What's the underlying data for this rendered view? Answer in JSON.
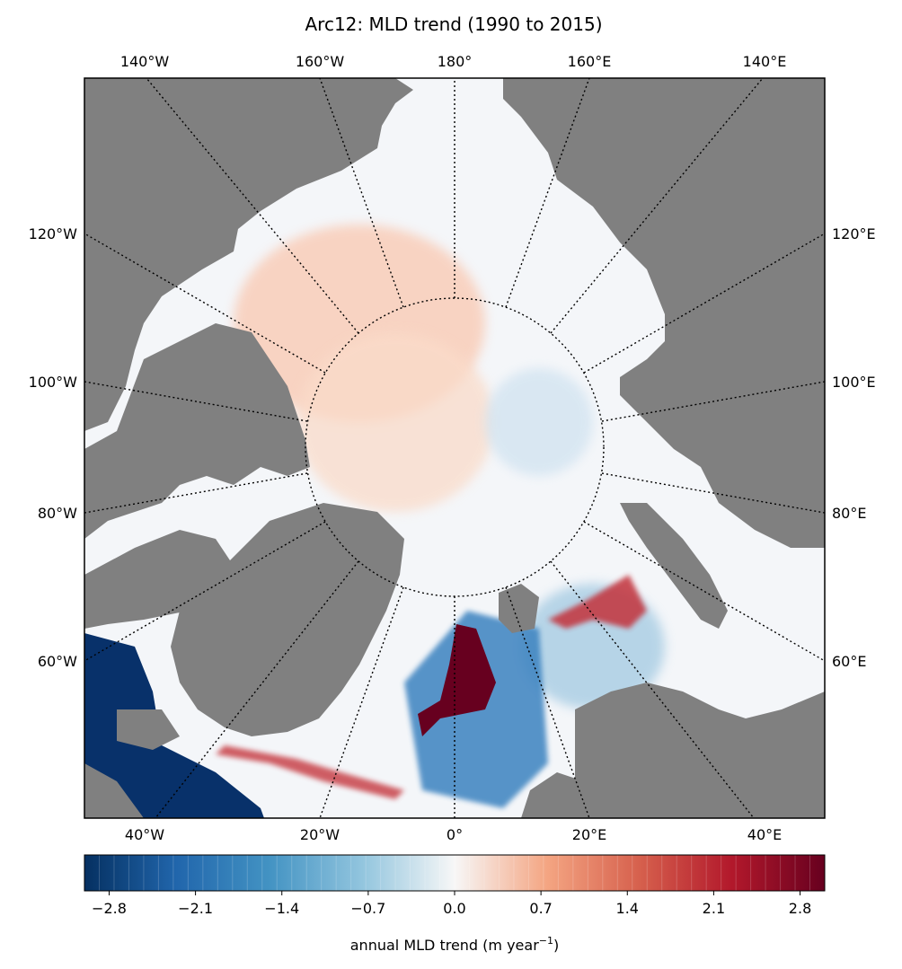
{
  "title": "Arc12: MLD trend (1990 to 2015)",
  "map": {
    "projection": "north-polar-stereographic",
    "land_color": "#808080",
    "ocean_color": "#f4f6f9",
    "graticule_style": "dotted",
    "labels_top": [
      "140°W",
      "160°W",
      "180°",
      "160°E",
      "140°E"
    ],
    "labels_left": [
      "120°W",
      "100°W",
      "80°W",
      "60°W"
    ],
    "labels_right": [
      "120°E",
      "100°E",
      "80°E",
      "60°E"
    ],
    "labels_bottom": [
      "40°W",
      "20°W",
      "0°",
      "20°E",
      "40°E"
    ]
  },
  "colorbar": {
    "cmap": "RdBu_r",
    "range": [
      -3.0,
      3.0
    ],
    "low_color": "#053061",
    "mid_color": "#f7f7f7",
    "high_color": "#67001f",
    "ticks": [
      "−2.8",
      "−2.1",
      "−1.4",
      "−0.7",
      "0.0",
      "0.7",
      "1.4",
      "2.1",
      "2.8"
    ],
    "tick_values": [
      -2.8,
      -2.1,
      -1.4,
      -0.7,
      0.0,
      0.7,
      1.4,
      2.1,
      2.8
    ],
    "label_main": "annual MLD trend (m year",
    "label_sup": "−1",
    "label_end": ")"
  }
}
